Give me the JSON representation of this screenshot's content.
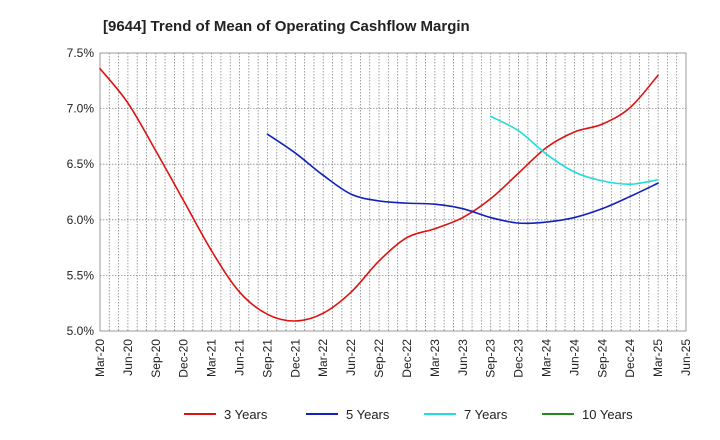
{
  "chart_data": {
    "type": "line",
    "title": "[9644]  Trend of Mean of Operating Cashflow Margin",
    "xlabel": "",
    "ylabel": "",
    "ylim": [
      5.0,
      7.5
    ],
    "y_ticks": [
      "7.5%",
      "7.0%",
      "6.5%",
      "6.0%",
      "5.5%",
      "5.0%"
    ],
    "y_tick_values": [
      7.5,
      7.0,
      6.5,
      6.0,
      5.5,
      5.0
    ],
    "x_ticks": [
      "Mar-20",
      "Jun-20",
      "Sep-20",
      "Dec-20",
      "Mar-21",
      "Jun-21",
      "Sep-21",
      "Dec-21",
      "Mar-22",
      "Jun-22",
      "Sep-22",
      "Dec-22",
      "Mar-23",
      "Jun-23",
      "Sep-23",
      "Dec-23",
      "Mar-24",
      "Jun-24",
      "Sep-24",
      "Dec-24",
      "Mar-25",
      "Jun-25"
    ],
    "grid": true,
    "legend_position": "bottom",
    "series": [
      {
        "name": "3 Years",
        "color": "#dd1111",
        "x": [
          "Mar-20",
          "Jun-20",
          "Sep-20",
          "Dec-20",
          "Mar-21",
          "Jun-21",
          "Sep-21",
          "Dec-21",
          "Mar-22",
          "Jun-22",
          "Sep-22",
          "Dec-22",
          "Mar-23",
          "Jun-23",
          "Sep-23",
          "Dec-23",
          "Mar-24",
          "Jun-24",
          "Sep-24",
          "Dec-24",
          "Mar-25"
        ],
        "values": [
          7.36,
          7.05,
          6.62,
          6.17,
          5.72,
          5.35,
          5.15,
          5.09,
          5.16,
          5.35,
          5.63,
          5.84,
          5.92,
          6.02,
          6.19,
          6.42,
          6.65,
          6.79,
          6.86,
          7.01,
          7.3
        ]
      },
      {
        "name": "5 Years",
        "color": "#1122bb",
        "x": [
          "Sep-21",
          "Dec-21",
          "Mar-22",
          "Jun-22",
          "Sep-22",
          "Dec-22",
          "Mar-23",
          "Jun-23",
          "Sep-23",
          "Dec-23",
          "Mar-24",
          "Jun-24",
          "Sep-24",
          "Dec-24",
          "Mar-25"
        ],
        "values": [
          6.77,
          6.6,
          6.4,
          6.23,
          6.17,
          6.15,
          6.14,
          6.1,
          6.02,
          5.97,
          5.98,
          6.02,
          6.1,
          6.21,
          6.33
        ]
      },
      {
        "name": "7 Years",
        "color": "#22dddd",
        "x": [
          "Sep-23",
          "Dec-23",
          "Mar-24",
          "Jun-24",
          "Sep-24",
          "Dec-24",
          "Mar-25"
        ],
        "values": [
          6.93,
          6.8,
          6.59,
          6.43,
          6.35,
          6.32,
          6.36
        ]
      },
      {
        "name": "10 Years",
        "color": "#228822",
        "x": [],
        "values": []
      }
    ]
  }
}
